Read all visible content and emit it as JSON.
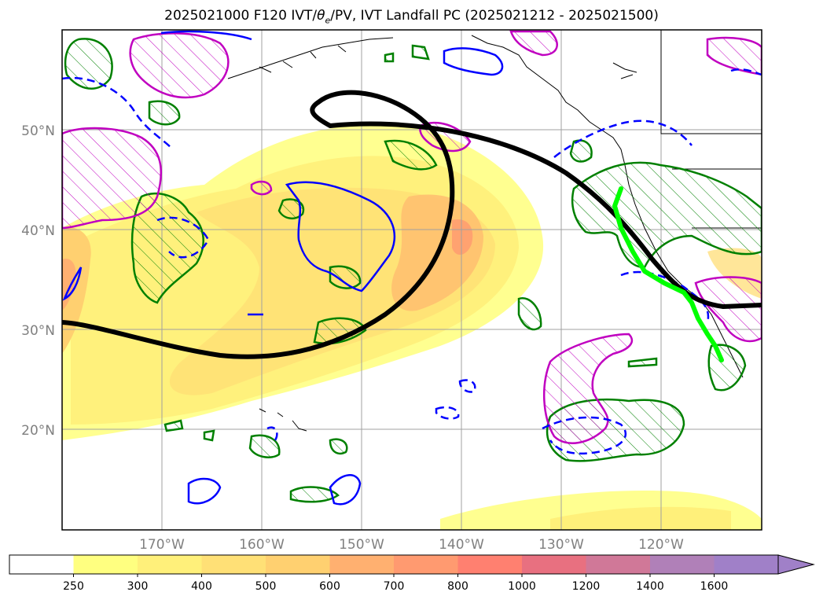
{
  "title": {
    "prefix": "2025021000 F120 IVT/",
    "theta": "θ",
    "theta_sub": "e",
    "suffix": "/PV, IVT Landfall PC (2025021212 - 2025021500)"
  },
  "axes": {
    "lat_labels": [
      "50°N",
      "40°N",
      "30°N",
      "20°N"
    ],
    "lon_labels": [
      "170°W",
      "160°W",
      "150°W",
      "140°W",
      "130°W",
      "120°W"
    ]
  },
  "colorbar": {
    "labels": [
      "250",
      "300",
      "400",
      "500",
      "600",
      "700",
      "800",
      "1000",
      "1200",
      "1400",
      "1600"
    ],
    "colors": [
      "#ffffff",
      "#ffff80",
      "#fff07a",
      "#ffe076",
      "#ffd070",
      "#ffb070",
      "#ff9a70",
      "#ff8070",
      "#e87080",
      "#d07898",
      "#b080b8",
      "#a080c8"
    ]
  },
  "colors": {
    "ivt_fill": "#ffe070",
    "theta_e_contour": "#008000",
    "pv_positive": "#c000c0",
    "pv_negative": "#0000ff",
    "landfall_pc": "#00ff00",
    "steering_line": "#000000"
  }
}
